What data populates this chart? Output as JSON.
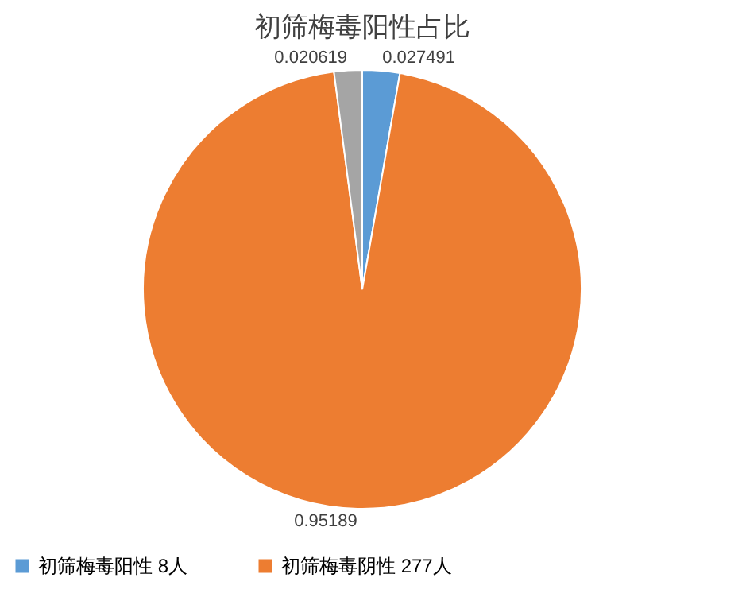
{
  "chart_data": {
    "type": "pie",
    "title": "初筛梅毒阳性占比",
    "categories": [
      "初筛梅毒阳性 8人",
      "初筛梅毒阴性 277人",
      null
    ],
    "values": [
      0.027491,
      0.95189,
      0.020619
    ],
    "colors": [
      "#5b9bd5",
      "#ed7d31",
      "#a5a5a5"
    ],
    "data_labels": true,
    "legend": "bottom"
  }
}
